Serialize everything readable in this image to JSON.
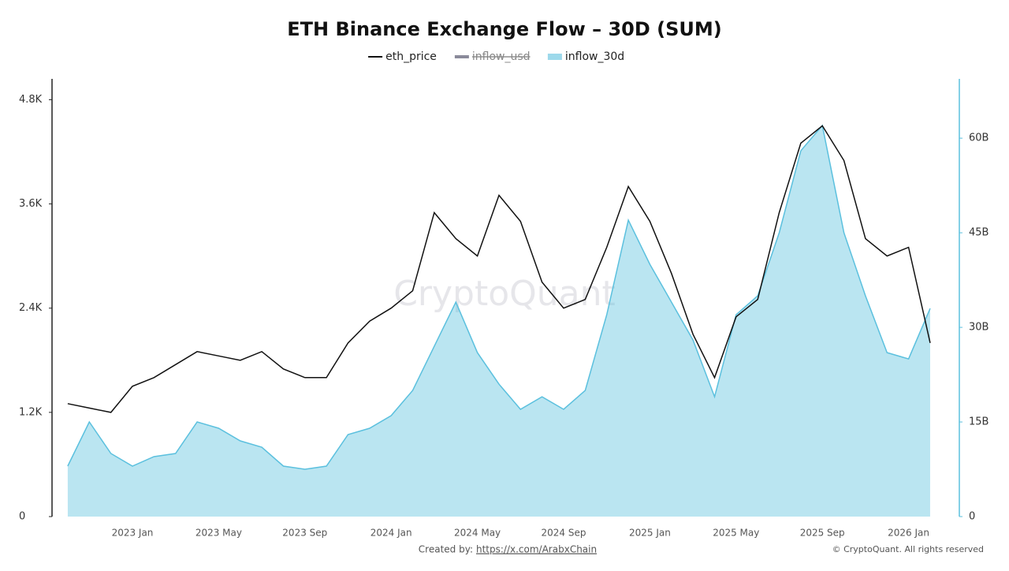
{
  "chart_data": {
    "type": "line",
    "title": "ETH Binance Exchange Flow – 30D (SUM)",
    "watermark": "CryptoQuant",
    "footer": {
      "created_by": "Created by:",
      "link": "https://x.com/ArabxChain",
      "copyright": "© CryptoQuant. All rights reserved"
    },
    "categories": [
      null,
      null,
      null,
      "2023 Jan",
      null,
      null,
      null,
      "2023 May",
      null,
      null,
      null,
      "2023 Sep",
      null,
      null,
      null,
      "2024 Jan",
      null,
      null,
      null,
      "2024 May",
      null,
      null,
      null,
      "2024 Sep",
      null,
      null,
      null,
      "2025 Jan",
      null,
      null,
      null,
      "2025 May",
      null,
      null,
      null,
      "2025 Sep",
      null,
      null,
      null,
      "2026 Jan",
      null
    ],
    "series": [
      {
        "name": "eth_price",
        "color": "#111111",
        "kind": "line",
        "axis": "y",
        "values": [
          1300,
          1250,
          1200,
          1500,
          1600,
          1750,
          1900,
          1850,
          1800,
          1900,
          1700,
          1600,
          1600,
          2000,
          2250,
          2400,
          2600,
          3500,
          3200,
          3000,
          3700,
          3400,
          2700,
          2400,
          2500,
          3100,
          3800,
          3400,
          2800,
          2100,
          1600,
          2300,
          2500,
          3500,
          4300,
          4500,
          4100,
          3200,
          3000,
          3100,
          2000
        ]
      },
      {
        "name": "inflow_30d",
        "color": "#5bc0de",
        "kind": "area",
        "axis": "y2",
        "values": [
          8,
          15,
          10,
          8,
          9.5,
          10,
          15,
          14,
          12,
          11,
          8,
          7.5,
          8,
          13,
          14,
          16,
          20,
          27,
          34,
          26,
          21,
          17,
          19,
          17,
          20,
          32,
          47,
          40,
          34,
          28,
          19,
          32,
          35,
          45,
          58,
          62,
          45,
          35,
          26,
          25,
          33
        ]
      }
    ],
    "legend": {
      "hidden_entries": [
        {
          "name": "inflow_usd",
          "color": "#8a8a9a"
        }
      ]
    },
    "ylim": [
      0,
      5040
    ],
    "yticks": [
      0,
      {
        "value": 1200,
        "label": "1.2K"
      },
      {
        "value": 2400,
        "label": "2.4K"
      },
      {
        "value": 3600,
        "label": "3.6K"
      },
      {
        "value": 4800,
        "label": "4.8K"
      }
    ],
    "y2lim": [
      0,
      69.4
    ],
    "y2ticks": [
      0,
      {
        "value": 15,
        "label": "15B"
      },
      {
        "value": 30,
        "label": "30B"
      },
      {
        "value": 45,
        "label": "45B"
      },
      {
        "value": 60,
        "label": "60B"
      }
    ]
  }
}
